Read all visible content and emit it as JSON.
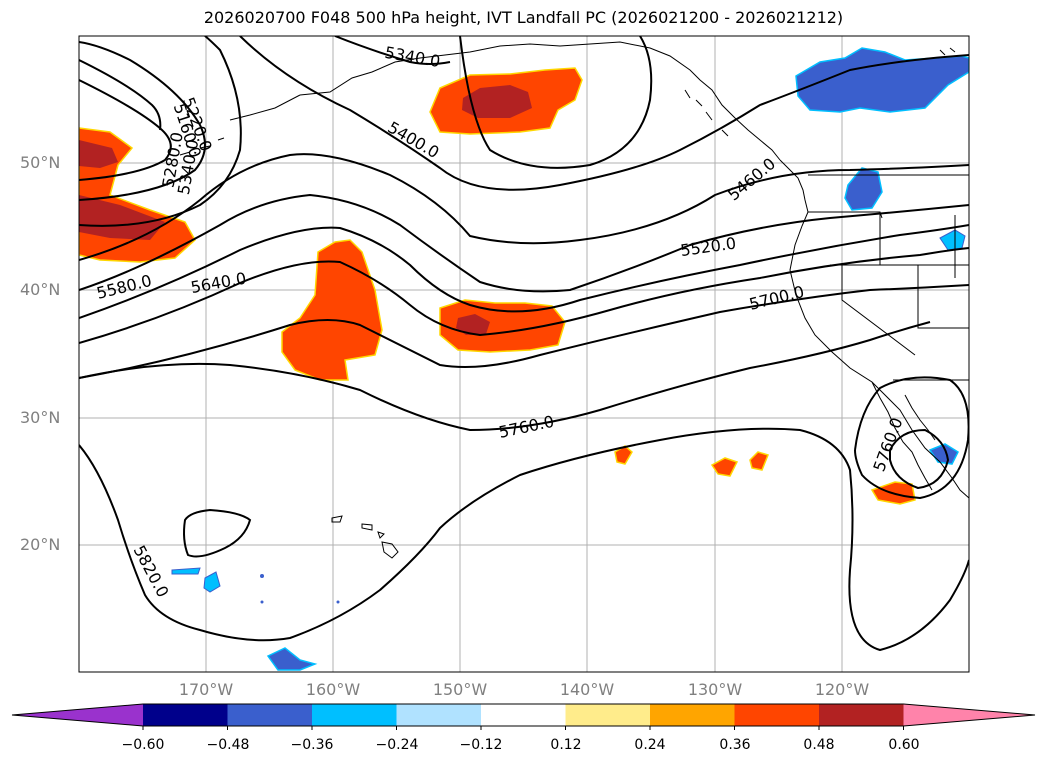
{
  "title": "2026020700 F048 500 hPa height, IVT Landfall PC (2026021200 - 2026021212)",
  "lat_labels": [
    "50°N",
    "40°N",
    "30°N",
    "20°N"
  ],
  "lon_labels": [
    "170°W",
    "160°W",
    "150°W",
    "140°W",
    "130°W",
    "120°W"
  ],
  "contour_labels": [
    "5160.0",
    "5220.0",
    "5280.0",
    "5340.0",
    "5340.0",
    "5400.0",
    "5460.0",
    "5520.0",
    "5580.0",
    "5640.0",
    "5700.0",
    "5760.0",
    "5760.0",
    "5820.0"
  ],
  "colorbar": {
    "ticks": [
      "−0.60",
      "−0.48",
      "−0.36",
      "−0.24",
      "−0.12",
      "0.12",
      "0.24",
      "0.36",
      "0.48",
      "0.60"
    ],
    "colors": [
      "#9a32cd",
      "#00008b",
      "#3a5fcd",
      "#00bfff",
      "#b0e2ff",
      "#ffffff",
      "#ffec8b",
      "#ffa500",
      "#ff4500",
      "#b22222",
      "#ff83aa"
    ]
  },
  "chart_data": {
    "type": "map",
    "title": "2026020700 F048 500 hPa height, IVT Landfall PC (2026021200 - 2026021212)",
    "field": "500 hPa geopotential height contours (m) with IVT landfall principal component shading",
    "lon_range": [
      -180,
      -110
    ],
    "lat_range": [
      10,
      60
    ],
    "contour_levels": [
      5160,
      5220,
      5280,
      5340,
      5400,
      5460,
      5520,
      5580,
      5640,
      5700,
      5760,
      5820
    ],
    "shading_levels": [
      -0.6,
      -0.48,
      -0.36,
      -0.24,
      -0.12,
      0.12,
      0.24,
      0.36,
      0.48,
      0.6
    ]
  }
}
